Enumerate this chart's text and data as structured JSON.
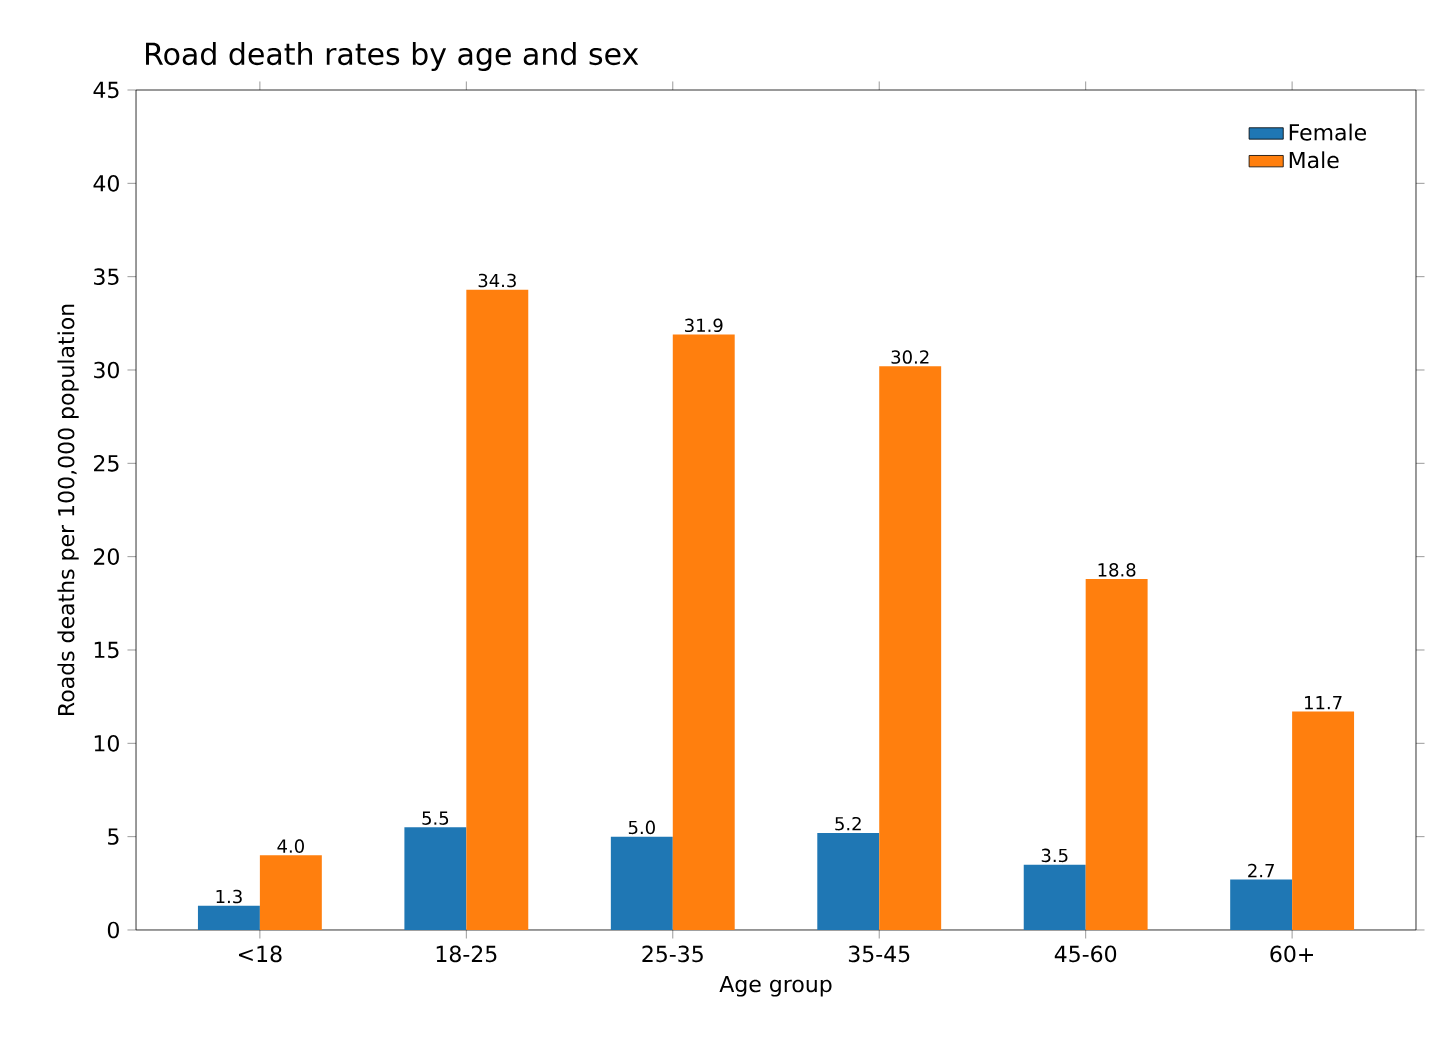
{
  "chart_data": {
    "type": "bar",
    "title": "Road death rates by age and sex",
    "xlabel": "Age group",
    "ylabel": "Roads deaths per 100,000 population",
    "categories": [
      "<18",
      "18-25",
      "25-35",
      "35-45",
      "45-60",
      "60+"
    ],
    "series": [
      {
        "name": "Female",
        "color": "#1f77b4",
        "values": [
          1.3,
          5.5,
          5.0,
          5.2,
          3.5,
          2.7
        ],
        "value_labels": [
          "1.3",
          "5.5",
          "5.0",
          "5.2",
          "3.5",
          "2.7"
        ]
      },
      {
        "name": "Male",
        "color": "#ff7f0e",
        "values": [
          4.0,
          34.3,
          31.9,
          30.2,
          18.8,
          11.7
        ],
        "value_labels": [
          "4.0",
          "34.3",
          "31.9",
          "30.2",
          "18.8",
          "11.7"
        ]
      }
    ],
    "ylim": [
      0,
      45
    ],
    "yticks": [
      0,
      5,
      10,
      15,
      20,
      25,
      30,
      35,
      40,
      45
    ],
    "legend": "top right",
    "grid": false
  }
}
